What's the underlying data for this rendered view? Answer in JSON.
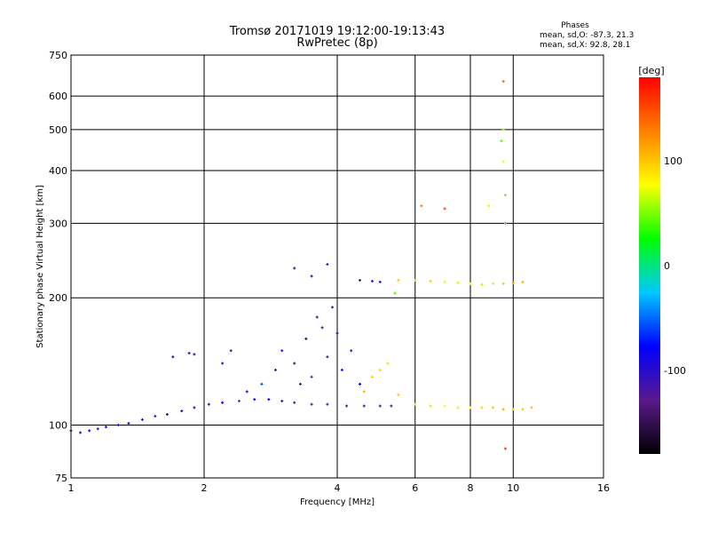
{
  "chart_data": {
    "type": "scatter",
    "title": "Tromsø 20171019 19:12:00-19:13:43",
    "subtitle": "RwPretec (8p)",
    "xlabel": "Frequency [MHz]",
    "ylabel": "Stationary phase Virtual Height [km]",
    "x_scale": "log2",
    "y_scale": "log",
    "xlim": [
      1,
      16
    ],
    "ylim": [
      75,
      750
    ],
    "x_ticks": [
      1,
      2,
      4,
      6,
      8,
      10,
      16
    ],
    "y_ticks": [
      75,
      100,
      200,
      300,
      400,
      500,
      600,
      750
    ],
    "grid": true,
    "legend": {
      "header": "Phases",
      "lines": [
        "mean, sd,O: -87.3, 21.3",
        "mean, sd,X:  92.8, 28.1"
      ],
      "position": "top-right"
    },
    "colorbar": {
      "label": "[deg]",
      "range": [
        -180,
        180
      ],
      "ticks": [
        100,
        0,
        -100
      ],
      "colormap": [
        "#000000",
        "#5a1a8c",
        "#0000ff",
        "#00c8ff",
        "#00ff00",
        "#ffff00",
        "#ff8000",
        "#ff0000"
      ]
    },
    "series": [
      {
        "name": "O",
        "points": [
          [
            1.0,
            97,
            -95
          ],
          [
            1.05,
            96,
            -100
          ],
          [
            1.1,
            97,
            -90
          ],
          [
            1.15,
            98,
            -105
          ],
          [
            1.2,
            99,
            -95
          ],
          [
            1.28,
            100,
            -100
          ],
          [
            1.35,
            101,
            -92
          ],
          [
            1.45,
            103,
            -98
          ],
          [
            1.55,
            105,
            -110
          ],
          [
            1.65,
            106,
            -95
          ],
          [
            1.78,
            108,
            -100
          ],
          [
            1.9,
            110,
            -88
          ],
          [
            2.05,
            112,
            -95
          ],
          [
            2.2,
            113,
            -80
          ],
          [
            2.4,
            114,
            -60
          ],
          [
            2.6,
            115,
            -75
          ],
          [
            2.8,
            115,
            -85
          ],
          [
            3.0,
            114,
            -110
          ],
          [
            3.2,
            113,
            -120
          ],
          [
            3.5,
            112,
            -130
          ],
          [
            3.8,
            112,
            -125
          ],
          [
            4.2,
            111,
            -115
          ],
          [
            4.6,
            111,
            -110
          ],
          [
            5.0,
            111,
            -115
          ],
          [
            5.3,
            111,
            -105
          ],
          [
            2.2,
            140,
            -105
          ],
          [
            2.3,
            150,
            -110
          ],
          [
            2.5,
            120,
            -70
          ],
          [
            2.7,
            125,
            -60
          ],
          [
            2.9,
            135,
            -100
          ],
          [
            3.0,
            150,
            -95
          ],
          [
            3.2,
            140,
            -140
          ],
          [
            3.4,
            160,
            -150
          ],
          [
            3.5,
            130,
            -125
          ],
          [
            3.7,
            170,
            -110
          ],
          [
            3.8,
            145,
            -135
          ],
          [
            3.9,
            190,
            -120
          ],
          [
            4.0,
            165,
            -90
          ],
          [
            4.1,
            135,
            -100
          ],
          [
            4.3,
            150,
            -115
          ],
          [
            4.5,
            125,
            -80
          ],
          [
            3.3,
            125,
            -140
          ],
          [
            3.6,
            180,
            -115
          ],
          [
            1.7,
            145,
            -100
          ],
          [
            1.85,
            148,
            -110
          ],
          [
            1.9,
            147,
            -105
          ],
          [
            4.5,
            220,
            -115
          ],
          [
            4.8,
            219,
            -110
          ],
          [
            5.0,
            218,
            -100
          ],
          [
            3.2,
            235,
            -110
          ],
          [
            3.5,
            225,
            -100
          ],
          [
            3.8,
            240,
            -105
          ]
        ]
      },
      {
        "name": "X",
        "points": [
          [
            4.6,
            120,
            110
          ],
          [
            4.8,
            130,
            100
          ],
          [
            5.0,
            135,
            95
          ],
          [
            5.2,
            140,
            90
          ],
          [
            5.5,
            118,
            100
          ],
          [
            6.0,
            112,
            85
          ],
          [
            6.5,
            111,
            95
          ],
          [
            7.0,
            111,
            80
          ],
          [
            7.5,
            110,
            90
          ],
          [
            8.0,
            110,
            75
          ],
          [
            8.5,
            110,
            95
          ],
          [
            9.0,
            110,
            100
          ],
          [
            9.5,
            109,
            110
          ],
          [
            10.0,
            109,
            95
          ],
          [
            10.5,
            109,
            100
          ],
          [
            11.0,
            110,
            105
          ],
          [
            5.4,
            205,
            40
          ],
          [
            5.5,
            220,
            100
          ],
          [
            6.0,
            220,
            90
          ],
          [
            6.5,
            219,
            95
          ],
          [
            7.0,
            218,
            85
          ],
          [
            7.5,
            217,
            70
          ],
          [
            8.0,
            216,
            80
          ],
          [
            8.5,
            215,
            60
          ],
          [
            9.0,
            216,
            90
          ],
          [
            9.5,
            216,
            100
          ],
          [
            10.0,
            217,
            120
          ],
          [
            10.5,
            218,
            110
          ],
          [
            9.4,
            470,
            40
          ],
          [
            9.5,
            500,
            60
          ],
          [
            9.5,
            420,
            80
          ],
          [
            9.6,
            350,
            110
          ],
          [
            9.6,
            300,
            130
          ],
          [
            9.5,
            650,
            140
          ],
          [
            9.6,
            88,
            160
          ],
          [
            6.2,
            330,
            130
          ],
          [
            7.0,
            325,
            150
          ],
          [
            8.8,
            330,
            70
          ]
        ]
      }
    ]
  }
}
